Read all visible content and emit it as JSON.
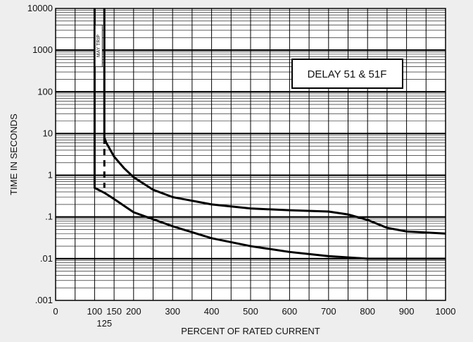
{
  "chart_data": {
    "type": "line",
    "title": "",
    "xlabel": "PERCENT OF RATED CURRENT",
    "ylabel": "TIME IN SECONDS",
    "xlim": [
      0,
      1000
    ],
    "ylim": [
      0.001,
      10000
    ],
    "yscale": "log",
    "grid": true,
    "legend": {
      "text": "DELAY 51 & 51F",
      "placement": "top-right"
    },
    "x_ticks": [
      0,
      100,
      150,
      200,
      300,
      400,
      500,
      600,
      700,
      800,
      900,
      1000
    ],
    "x_tick_labels": [
      "0",
      "100",
      "150",
      "200",
      "300",
      "400",
      "500",
      "600",
      "700",
      "800",
      "900",
      "1000"
    ],
    "x_extra_tick_label": {
      "value": 125,
      "label": "125"
    },
    "y_ticks": [
      0.001,
      0.01,
      0.1,
      1,
      10,
      100,
      1000,
      10000
    ],
    "y_tick_labels": [
      ".001",
      ".01",
      ".1",
      "1",
      "10",
      "100",
      "1000",
      "10000"
    ],
    "annotation": {
      "text": "MAY TRIP",
      "x": 125,
      "y_range": [
        400,
        4000
      ]
    },
    "series": [
      {
        "x": [
          125,
          125,
          130,
          150,
          175,
          200,
          250,
          300,
          400,
          500,
          600,
          700,
          750,
          800,
          850,
          900,
          1000
        ],
        "y": [
          10000,
          8,
          6,
          2.8,
          1.5,
          0.9,
          0.45,
          0.3,
          0.2,
          0.16,
          0.145,
          0.135,
          0.115,
          0.085,
          0.055,
          0.045,
          0.04
        ]
      },
      {
        "x": [
          100,
          100,
          125,
          150,
          200,
          300,
          400,
          500,
          600,
          700,
          800,
          900,
          1000
        ],
        "y": [
          10000,
          0.5,
          0.38,
          0.27,
          0.13,
          0.06,
          0.031,
          0.02,
          0.0145,
          0.0115,
          0.01,
          0.01,
          0.01
        ]
      },
      {
        "x": [
          125,
          125
        ],
        "y": [
          8,
          0.5
        ],
        "style": "dashed"
      }
    ]
  }
}
